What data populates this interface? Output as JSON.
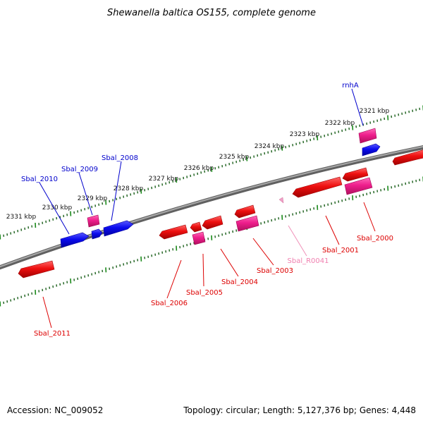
{
  "title": "Shewanella baltica OS155, complete genome",
  "footer": {
    "accession": "Accession: NC_009052",
    "topology": "Topology: circular; Length: 5,127,376 bp; Genes: 4,448"
  },
  "kbp_labels": [
    "2321 kbp",
    "2322 kbp",
    "2323 kbp",
    "2324 kbp",
    "2325 kbp",
    "2326 kbp",
    "2327 kbp",
    "2328 kbp",
    "2329 kbp",
    "2330 kbp",
    "2331 kbp"
  ],
  "genes_forward": [
    "rnhA",
    "Sbal_2008",
    "Sbal_2009",
    "Sbal_2010"
  ],
  "genes_reverse": [
    "Sbal_2000",
    "Sbal_2001",
    "Sbal_R0041",
    "Sbal_2003",
    "Sbal_2004",
    "Sbal_2005",
    "Sbal_2006",
    "Sbal_2011"
  ],
  "colors": {
    "forward_cds": "#0000ee",
    "reverse_cds": "#ee0000",
    "rna_or_pseudo": "#ee1e8c",
    "trna": "#f0a0c8",
    "backbone": "#808080",
    "tick_major": "#1a8a1a",
    "tick_minor": "#2a6a2a"
  }
}
